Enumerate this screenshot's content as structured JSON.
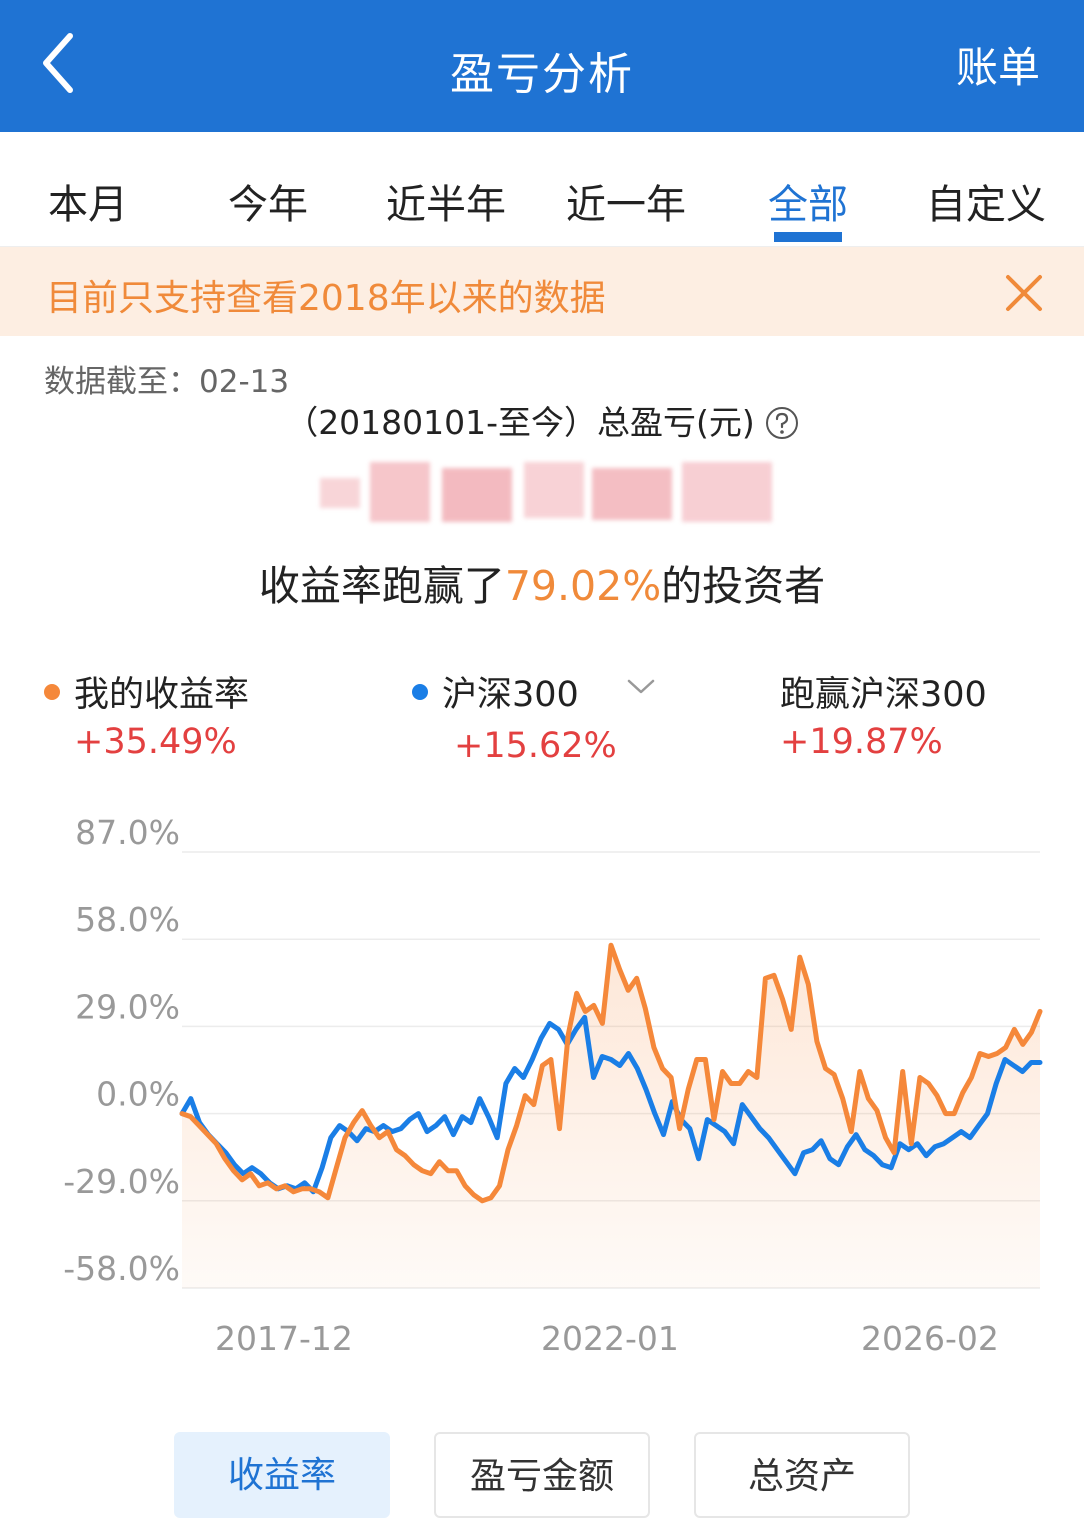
{
  "header": {
    "title": "盈亏分析",
    "right_label": "账单"
  },
  "tabs": [
    {
      "label": "本月",
      "active": false
    },
    {
      "label": "今年",
      "active": false
    },
    {
      "label": "近半年",
      "active": false
    },
    {
      "label": "近一年",
      "active": false
    },
    {
      "label": "全部",
      "active": true
    },
    {
      "label": "自定义",
      "active": false
    }
  ],
  "notice": {
    "text": "目前只支持查看2018年以来的数据"
  },
  "summary": {
    "data_date": "数据截至：02-13",
    "period_label": "（20180101-至今）总盈亏(元)",
    "beat_prefix": "收益率跑赢了",
    "beat_value": "79.02%",
    "beat_suffix": "的投资者"
  },
  "legend": {
    "mine": {
      "label": "我的收益率",
      "value": "+35.49%",
      "color": "#f5883a"
    },
    "index": {
      "label": "沪深300",
      "value": "+15.62%",
      "color": "#1a7ee6"
    },
    "beat": {
      "label": "跑赢沪深300",
      "value": "+19.87%"
    }
  },
  "chart_data": {
    "type": "line",
    "y_ticks": [
      "87.0%",
      "58.0%",
      "29.0%",
      "0.0%",
      "-29.0%",
      "-58.0%"
    ],
    "x_ticks": [
      "2017-12",
      "2022-01",
      "2026-02"
    ],
    "ylim": [
      -58,
      87
    ],
    "grid": true,
    "legend_position": "top",
    "series": [
      {
        "name": "我的收益率",
        "color": "#f5883a",
        "fill": true,
        "values": [
          0,
          -1,
          -4,
          -7,
          -10,
          -15,
          -19,
          -22,
          -20,
          -24,
          -23,
          -25,
          -24,
          -26,
          -25,
          -25,
          -26,
          -28,
          -18,
          -8,
          -3,
          1,
          -4,
          -8,
          -6,
          -12,
          -14,
          -17,
          -19,
          -20,
          -16,
          -19,
          -19,
          -24,
          -27,
          -29,
          -28,
          -24,
          -12,
          -4,
          6,
          3,
          16,
          18,
          -5,
          26,
          40,
          34,
          36,
          30,
          56,
          48,
          41,
          45,
          35,
          22,
          15,
          12,
          -5,
          8,
          18,
          18,
          -2,
          14,
          10,
          10,
          14,
          12,
          45,
          46,
          38,
          28,
          52,
          43,
          24,
          15,
          13,
          5,
          -6,
          14,
          5,
          1,
          -8,
          -13,
          14,
          -10,
          12,
          10,
          6,
          0,
          0,
          7,
          12,
          20,
          19,
          20,
          22,
          28,
          23,
          27,
          34
        ]
      },
      {
        "name": "沪深300",
        "color": "#1a7ee6",
        "fill": false,
        "values": [
          0,
          5,
          -3,
          -7,
          -10,
          -13,
          -17,
          -20,
          -18,
          -20,
          -23,
          -25,
          -24,
          -25,
          -23,
          -26,
          -18,
          -8,
          -4,
          -6,
          -9,
          -5,
          -6,
          -4,
          -6,
          -5,
          -2,
          0,
          -6,
          -4,
          -1,
          -7,
          -1,
          -3,
          5,
          -1,
          -8,
          10,
          15,
          12,
          18,
          25,
          30,
          28,
          23,
          28,
          32,
          12,
          19,
          18,
          16,
          20,
          15,
          8,
          0,
          -7,
          4,
          -2,
          -5,
          -15,
          -2,
          -4,
          -6,
          -10,
          3,
          -1,
          -5,
          -8,
          -12,
          -16,
          -20,
          -13,
          -12,
          -9,
          -15,
          -17,
          -11,
          -7,
          -12,
          -14,
          -17,
          -18,
          -10,
          -12,
          -10,
          -14,
          -11,
          -10,
          -8,
          -6,
          -8,
          -4,
          0,
          10,
          18,
          16,
          14,
          17,
          17
        ]
      }
    ]
  },
  "buttons": [
    {
      "label": "收益率",
      "active": true
    },
    {
      "label": "盈亏金额",
      "active": false
    },
    {
      "label": "总资产",
      "active": false
    }
  ]
}
